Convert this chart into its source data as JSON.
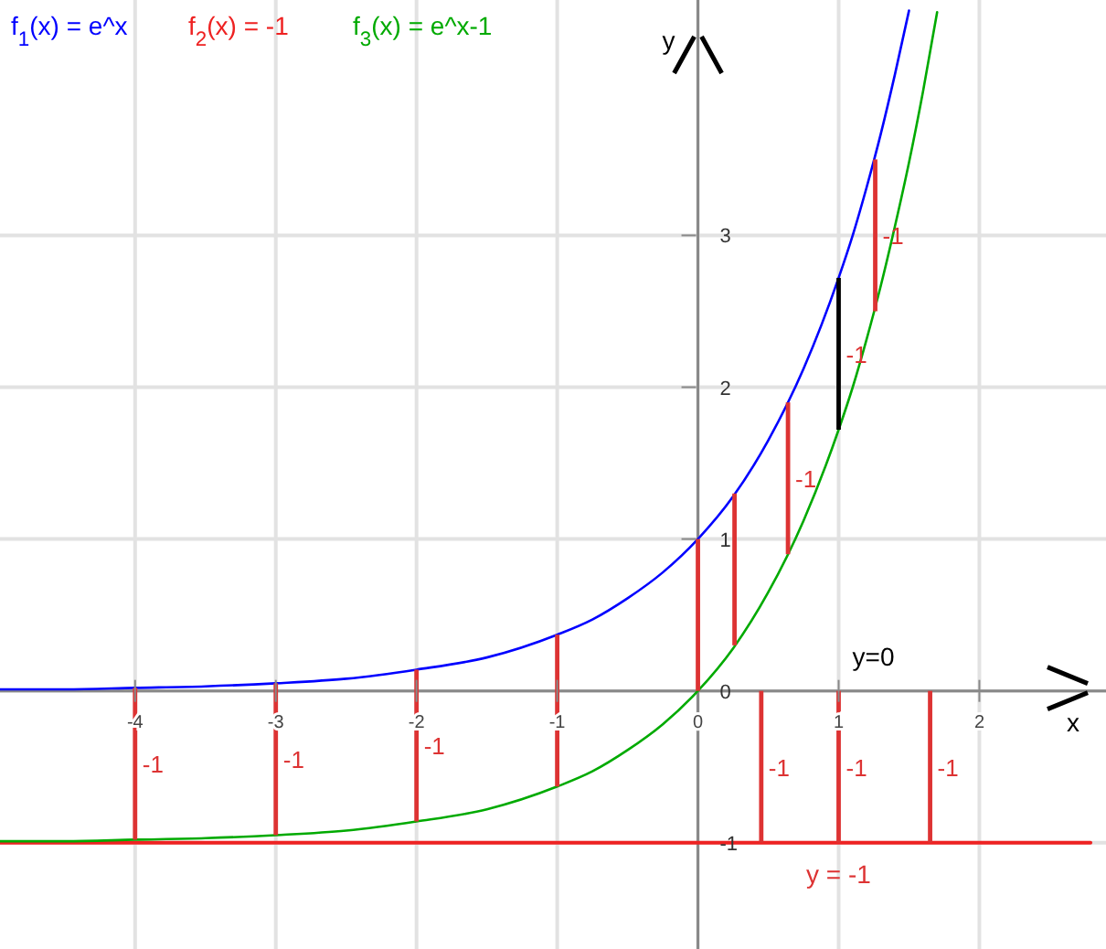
{
  "chart_data": {
    "type": "line",
    "xlabel": "x",
    "ylabel": "y",
    "xlim": [
      -4.96,
      2.9
    ],
    "ylim": [
      -1.7,
      4.55
    ],
    "xticks": [
      -4,
      -3,
      -2,
      -1,
      0,
      1,
      2
    ],
    "yticks": [
      -1,
      0,
      1,
      2,
      3
    ],
    "grid": true,
    "legend": "top left",
    "marker": "none",
    "line_style": "solid",
    "annotations": [
      "y=0",
      {
        "text": "y = -1",
        "x": 1,
        "y": -1
      }
    ],
    "series": [
      {
        "name": "f$_{1}$(x) = e^x",
        "color": "#0000ff",
        "x": [
          -4.96,
          -4.5,
          -4,
          -3.5,
          -3,
          -2.5,
          -2,
          -1.5,
          -1,
          -0.75,
          -0.5,
          -0.25,
          0,
          0.25,
          0.5,
          0.75,
          1,
          1.1,
          1.2,
          1.3,
          1.4,
          1.5
        ],
        "values": [
          0.01,
          0.01,
          0.02,
          0.03,
          0.05,
          0.08,
          0.14,
          0.22,
          0.37,
          0.47,
          0.61,
          0.78,
          1,
          1.28,
          1.65,
          2.12,
          2.72,
          3.0,
          3.32,
          3.67,
          4.06,
          4.48
        ]
      },
      {
        "name": "f$_{2}$(x) = -1",
        "color": "#ee2222",
        "x": [
          -4.96,
          2.79
        ],
        "values": [
          -1,
          -1
        ]
      },
      {
        "name": "f$_{3}$(x) = e^x-1",
        "color": "#00aa00",
        "x": [
          -4.96,
          -4.5,
          -4,
          -3.5,
          -3,
          -2.5,
          -2,
          -1.5,
          -1,
          -0.75,
          -0.5,
          -0.25,
          0,
          0.25,
          0.5,
          0.75,
          1,
          1.1,
          1.2,
          1.3,
          1.4,
          1.5,
          1.6,
          1.7
        ],
        "values": [
          -0.99,
          -0.99,
          -0.98,
          -0.97,
          -0.95,
          -0.92,
          -0.86,
          -0.78,
          -0.63,
          -0.53,
          -0.39,
          -0.22,
          0,
          0.28,
          0.65,
          1.12,
          1.72,
          2.0,
          2.32,
          2.67,
          3.06,
          3.48,
          3.95,
          4.47
        ]
      },
      {
        "type": "bar",
        "colors": [
          "#dd3333",
          "#dd3333",
          "#dd3333",
          "#dd3333",
          "#dd3333",
          "#dd3333",
          "#dd3333",
          "#000000",
          "#dd3333"
        ],
        "x": [
          -4,
          -3,
          -2,
          -1,
          0,
          0.26,
          0.64,
          1,
          1.26
        ],
        "base": [
          0.02,
          0.05,
          0.14,
          0.37,
          1,
          1.3,
          1.9,
          2.72,
          3.5
        ],
        "values": [
          -1,
          -1,
          -1,
          -1,
          -1,
          -1,
          -1,
          -1,
          -1
        ],
        "value_labels": [
          "-1",
          "-1",
          "-1",
          null,
          null,
          null,
          "-1",
          "-1",
          "-1"
        ]
      },
      {
        "type": "bar",
        "color": "#dd3333",
        "x": [
          0.45,
          1,
          1.65
        ],
        "base": [
          0,
          0,
          0
        ],
        "values": [
          -1,
          -1,
          -1
        ],
        "value_labels": [
          "-1",
          "-1",
          "-1"
        ]
      }
    ]
  }
}
